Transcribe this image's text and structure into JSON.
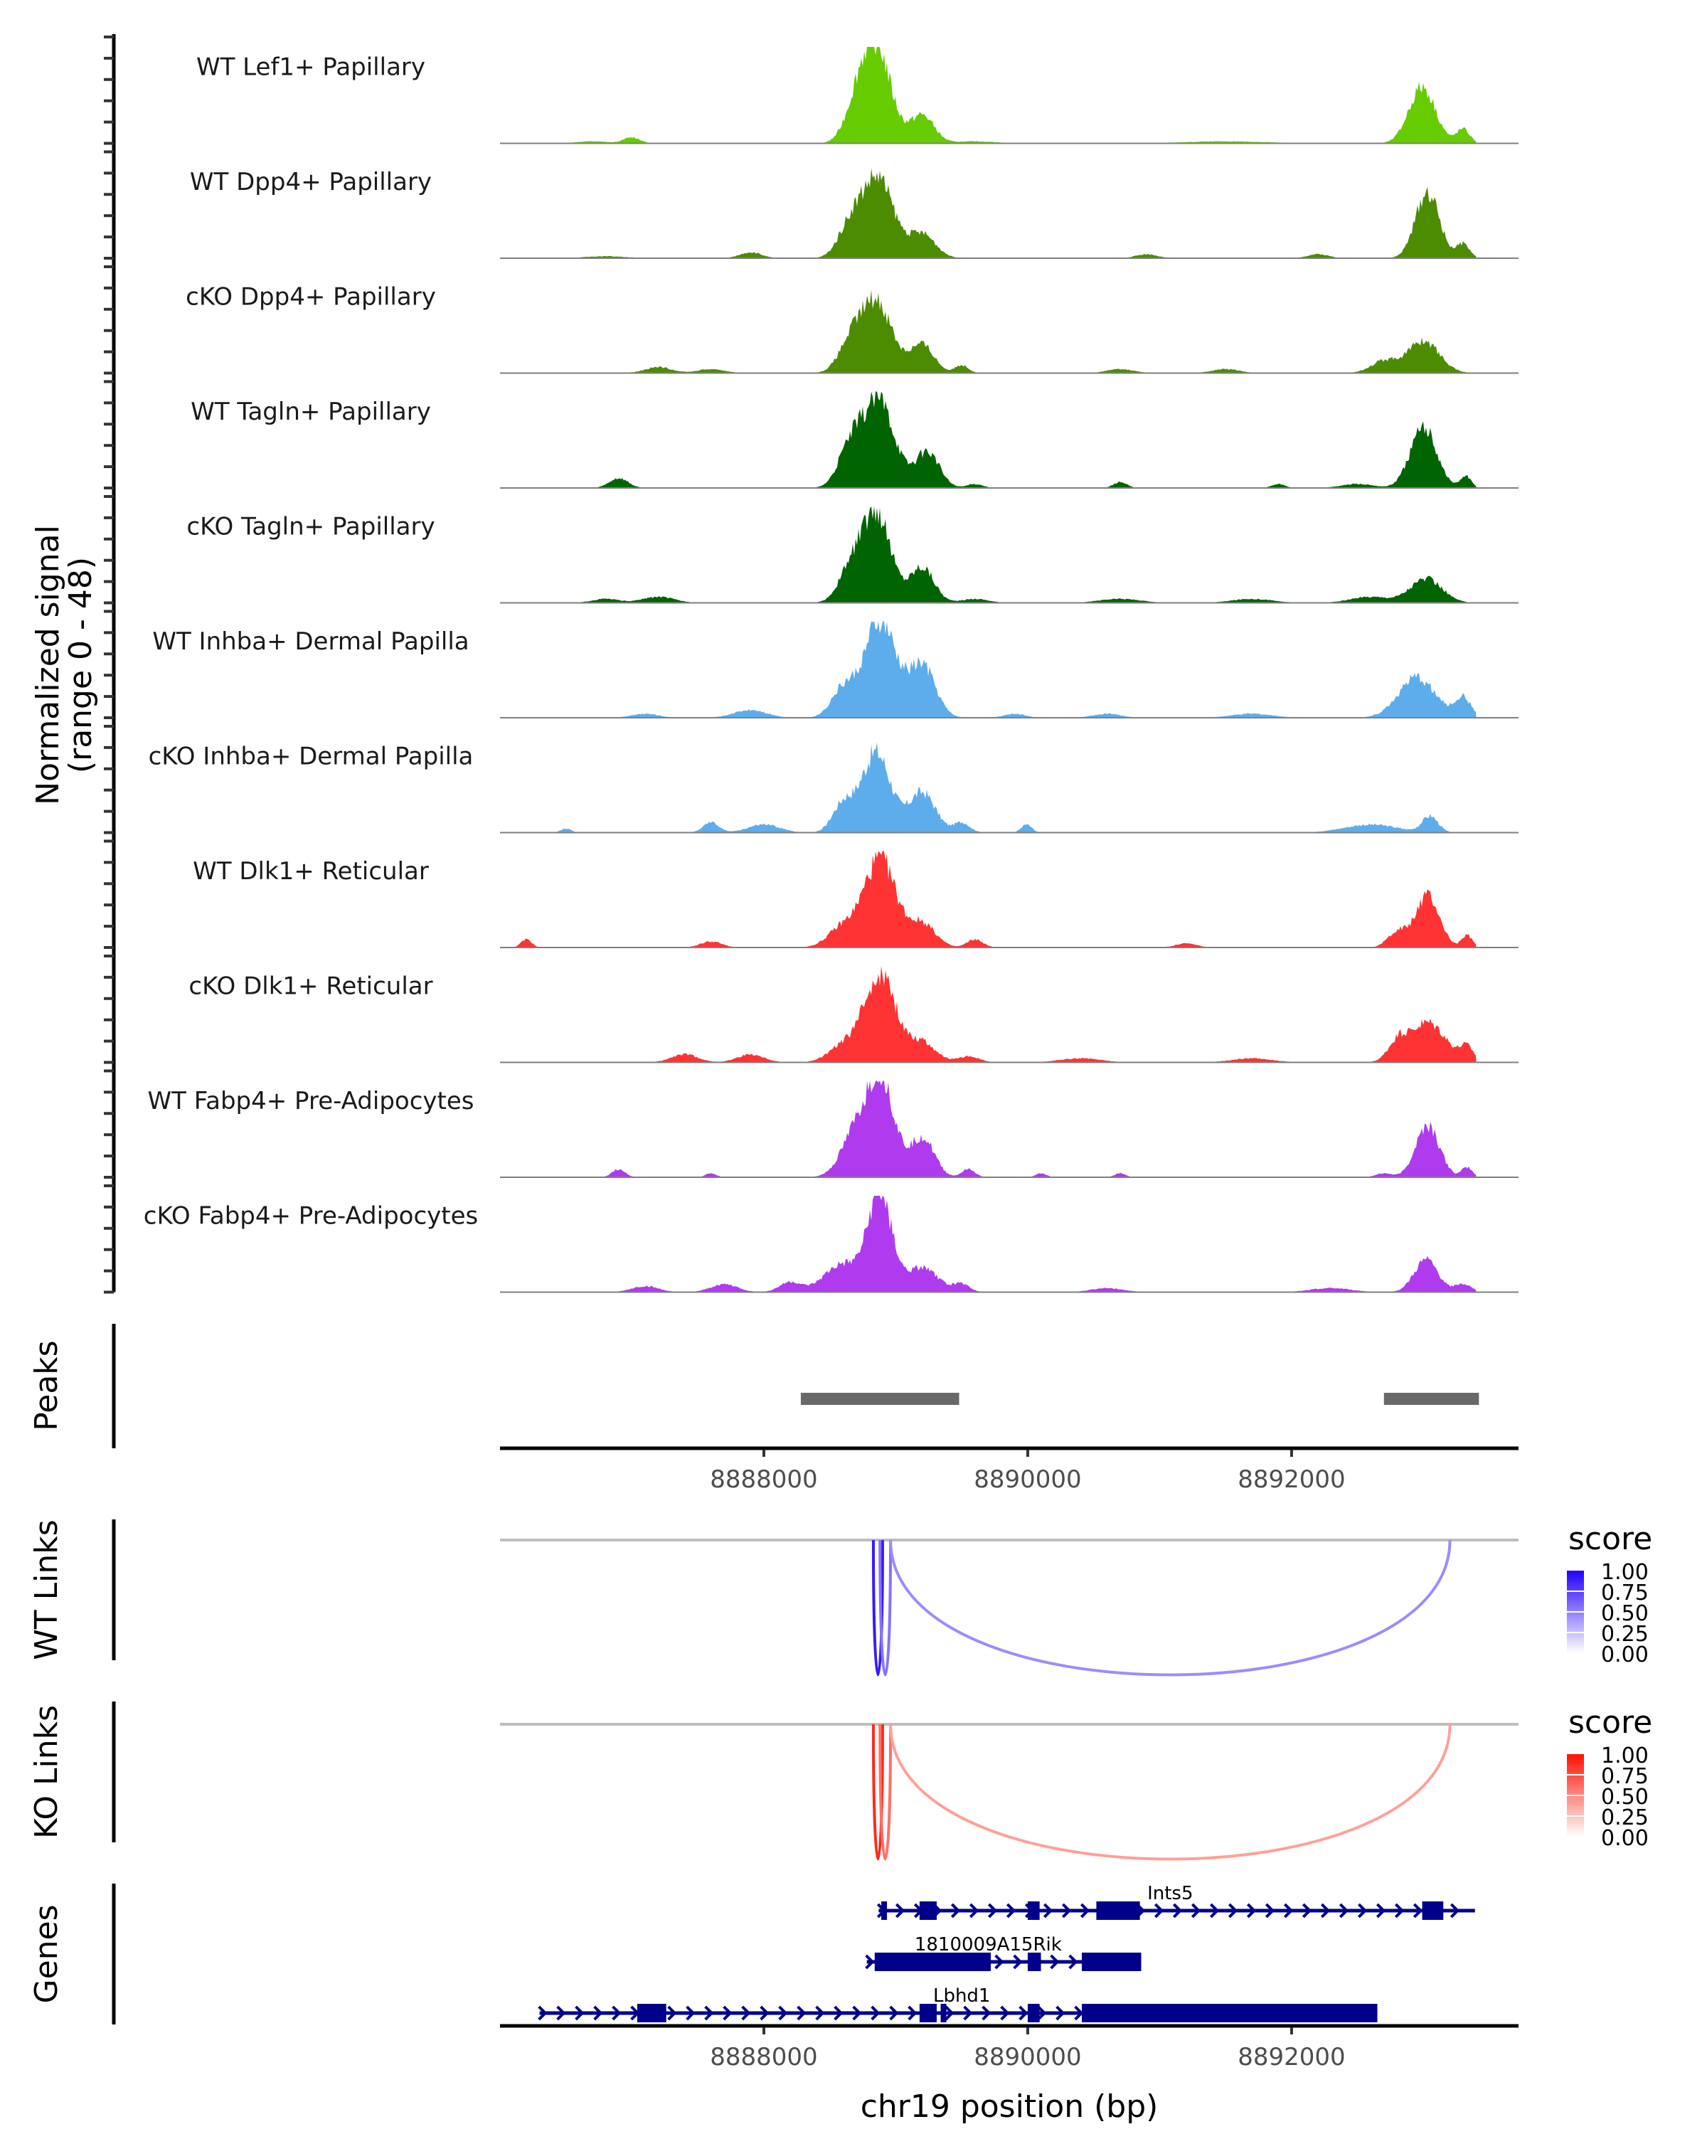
{
  "chart_data": {
    "type": "area",
    "title": "",
    "xlabel": "chr19 position (bp)",
    "ylabel_line1": "Normalized signal",
    "ylabel_line2": "(range 0 - 48)",
    "xlim": [
      8886000,
      8893720
    ],
    "ylim": [
      0,
      48
    ],
    "x_ticks": [
      {
        "value": 8888000,
        "label": "8888000"
      },
      {
        "value": 8890000,
        "label": "8890000"
      },
      {
        "value": 8892000,
        "label": "8892000"
      }
    ],
    "signal_end": 8893400,
    "tracks": [
      {
        "name": "WT Lef1+ Papillary",
        "color": "#66CC00",
        "peaks": [
          [
            8888850,
            48,
            110
          ],
          [
            8888700,
            14,
            90
          ],
          [
            8889200,
            14,
            90
          ],
          [
            8892990,
            28,
            100
          ],
          [
            8893300,
            7,
            50
          ],
          [
            8887000,
            3,
            60
          ],
          [
            8886700,
            1,
            120
          ],
          [
            8889600,
            1,
            150
          ],
          [
            8891500,
            1,
            300
          ]
        ]
      },
      {
        "name": "WT Dpp4+ Papillary",
        "color": "#4C8C00",
        "peaks": [
          [
            8888860,
            40,
            120
          ],
          [
            8888650,
            14,
            90
          ],
          [
            8889200,
            12,
            100
          ],
          [
            8893030,
            33,
            90
          ],
          [
            8893300,
            7,
            50
          ],
          [
            8887900,
            3,
            80
          ],
          [
            8890900,
            2,
            80
          ],
          [
            8892200,
            2,
            80
          ],
          [
            8886800,
            1,
            150
          ]
        ]
      },
      {
        "name": "cKO Dpp4+ Papillary",
        "color": "#4C8C00",
        "peaks": [
          [
            8888850,
            36,
            120
          ],
          [
            8888650,
            12,
            90
          ],
          [
            8889200,
            14,
            90
          ],
          [
            8889500,
            4,
            50
          ],
          [
            8893000,
            16,
            120
          ],
          [
            8892700,
            6,
            100
          ],
          [
            8887200,
            3,
            100
          ],
          [
            8887600,
            2,
            100
          ],
          [
            8890700,
            2,
            100
          ],
          [
            8891500,
            2,
            100
          ]
        ]
      },
      {
        "name": "WT Tagln+ Papillary",
        "color": "#006400",
        "peaks": [
          [
            8888870,
            44,
            120
          ],
          [
            8888650,
            18,
            90
          ],
          [
            8889240,
            18,
            90
          ],
          [
            8893000,
            30,
            100
          ],
          [
            8893320,
            6,
            40
          ],
          [
            8886900,
            5,
            70
          ],
          [
            8889600,
            2,
            60
          ],
          [
            8890700,
            3,
            50
          ],
          [
            8891900,
            2,
            50
          ],
          [
            8892500,
            2,
            120
          ]
        ]
      },
      {
        "name": "cKO Tagln+ Papillary",
        "color": "#006400",
        "peaks": [
          [
            8888850,
            45,
            110
          ],
          [
            8888650,
            14,
            90
          ],
          [
            8889200,
            18,
            90
          ],
          [
            8893020,
            12,
            120
          ],
          [
            8892600,
            3,
            150
          ],
          [
            8887200,
            3,
            120
          ],
          [
            8889600,
            2,
            100
          ],
          [
            8890700,
            2,
            150
          ],
          [
            8891700,
            2,
            150
          ],
          [
            8886800,
            2,
            100
          ]
        ]
      },
      {
        "name": "WT Inhba+ Dermal Papilla",
        "color": "#5DADEC",
        "peaks": [
          [
            8888880,
            48,
            120
          ],
          [
            8888600,
            14,
            90
          ],
          [
            8889200,
            26,
            100
          ],
          [
            8892950,
            20,
            140
          ],
          [
            8893300,
            10,
            60
          ],
          [
            8887900,
            4,
            120
          ],
          [
            8887100,
            2,
            100
          ],
          [
            8889900,
            2,
            80
          ],
          [
            8890600,
            2,
            100
          ],
          [
            8891700,
            2,
            150
          ]
        ]
      },
      {
        "name": "cKO Inhba+ Dermal Papilla",
        "color": "#5DADEC",
        "peaks": [
          [
            8888850,
            40,
            110
          ],
          [
            8888600,
            14,
            80
          ],
          [
            8889200,
            20,
            100
          ],
          [
            8889500,
            5,
            60
          ],
          [
            8889990,
            4,
            40
          ],
          [
            8887600,
            5,
            60
          ],
          [
            8886500,
            2,
            40
          ],
          [
            8888000,
            4,
            120
          ],
          [
            8892600,
            4,
            200
          ],
          [
            8893050,
            8,
            60
          ]
        ]
      },
      {
        "name": "WT Dlk1+ Reticular",
        "color": "#FF3333",
        "peaks": [
          [
            8888880,
            44,
            120
          ],
          [
            8888600,
            10,
            110
          ],
          [
            8889200,
            12,
            100
          ],
          [
            8889600,
            4,
            60
          ],
          [
            8893030,
            26,
            90
          ],
          [
            8892800,
            8,
            70
          ],
          [
            8893330,
            6,
            40
          ],
          [
            8886200,
            4,
            40
          ],
          [
            8887600,
            3,
            80
          ],
          [
            8891200,
            2,
            80
          ]
        ]
      },
      {
        "name": "cKO Dlk1+ Reticular",
        "color": "#FF3333",
        "peaks": [
          [
            8888880,
            44,
            120
          ],
          [
            8888600,
            8,
            110
          ],
          [
            8889200,
            10,
            100
          ],
          [
            8889550,
            3,
            80
          ],
          [
            8893030,
            20,
            140
          ],
          [
            8892800,
            8,
            70
          ],
          [
            8893330,
            7,
            50
          ],
          [
            8887400,
            4,
            100
          ],
          [
            8887900,
            4,
            100
          ],
          [
            8891700,
            2,
            150
          ],
          [
            8890400,
            2,
            150
          ]
        ]
      },
      {
        "name": "WT Fabp4+ Pre-Adipocytes",
        "color": "#B03AEE",
        "peaks": [
          [
            8888890,
            48,
            100
          ],
          [
            8888700,
            22,
            110
          ],
          [
            8889200,
            20,
            90
          ],
          [
            8889550,
            4,
            50
          ],
          [
            8893030,
            26,
            90
          ],
          [
            8893330,
            5,
            40
          ],
          [
            8886900,
            4,
            50
          ],
          [
            8887600,
            2,
            40
          ],
          [
            8890100,
            2,
            40
          ],
          [
            8890700,
            2,
            40
          ],
          [
            8892700,
            2,
            60
          ]
        ]
      },
      {
        "name": "cKO Fabp4+ Pre-Adipocytes",
        "color": "#B03AEE",
        "peaks": [
          [
            8888880,
            48,
            90
          ],
          [
            8888600,
            14,
            140
          ],
          [
            8889200,
            12,
            120
          ],
          [
            8889500,
            4,
            60
          ],
          [
            8893020,
            16,
            90
          ],
          [
            8893300,
            4,
            60
          ],
          [
            8887100,
            3,
            100
          ],
          [
            8887700,
            4,
            100
          ],
          [
            8888200,
            5,
            80
          ],
          [
            8890600,
            2,
            120
          ],
          [
            8892300,
            2,
            150
          ]
        ]
      }
    ],
    "peaks_track": {
      "label": "Peaks",
      "color": "#696969",
      "ranges": [
        [
          8888280,
          8889480
        ],
        [
          8892700,
          8893420
        ]
      ]
    },
    "links": [
      {
        "label": "WT Links",
        "legend_title": "score",
        "color_high": "#2200FF",
        "legend_ticks": [
          "1.00",
          "0.75",
          "0.50",
          "0.25",
          "0.00"
        ],
        "arcs": [
          {
            "start": 8888830,
            "end": 8888900,
            "score": 0.9
          },
          {
            "start": 8888880,
            "end": 8888960,
            "score": 0.55
          },
          {
            "start": 8888960,
            "end": 8893200,
            "score": 0.45
          }
        ]
      },
      {
        "label": "KO Links",
        "legend_title": "score",
        "color_high": "#FF1100",
        "legend_ticks": [
          "1.00",
          "0.75",
          "0.50",
          "0.25",
          "0.00"
        ],
        "arcs": [
          {
            "start": 8888830,
            "end": 8888900,
            "score": 0.9
          },
          {
            "start": 8888880,
            "end": 8888960,
            "score": 0.6
          },
          {
            "start": 8888960,
            "end": 8893200,
            "score": 0.4
          }
        ]
      }
    ],
    "genes_track": {
      "label": "Genes",
      "color": "#00008B",
      "genes": [
        {
          "name": "Ints5",
          "row": 0,
          "start": 8888870,
          "end": 8893390,
          "strand": "+",
          "exons": [
            [
              8888890,
              8888920
            ],
            [
              8889180,
              8889310
            ],
            [
              8890000,
              8890090
            ],
            [
              8890520,
              8890850
            ],
            [
              8892990,
              8893150
            ]
          ],
          "label_pos": 8891080
        },
        {
          "name": "1810009A15Rik",
          "row": 1,
          "start": 8888780,
          "end": 8890860,
          "strand": "+",
          "exons": [
            [
              8888840,
              8889720
            ],
            [
              8890000,
              8890100
            ],
            [
              8890410,
              8890860
            ]
          ],
          "label_pos": 8889700
        },
        {
          "name": "Lbhd1",
          "row": 2,
          "start": 8886300,
          "end": 8892650,
          "strand": "+",
          "exons": [
            [
              8887040,
              8887260
            ],
            [
              8889180,
              8889310
            ],
            [
              8889340,
              8889380
            ],
            [
              8890000,
              8890090
            ],
            [
              8890410,
              8892650
            ]
          ],
          "label_pos": 8889500
        }
      ]
    }
  }
}
